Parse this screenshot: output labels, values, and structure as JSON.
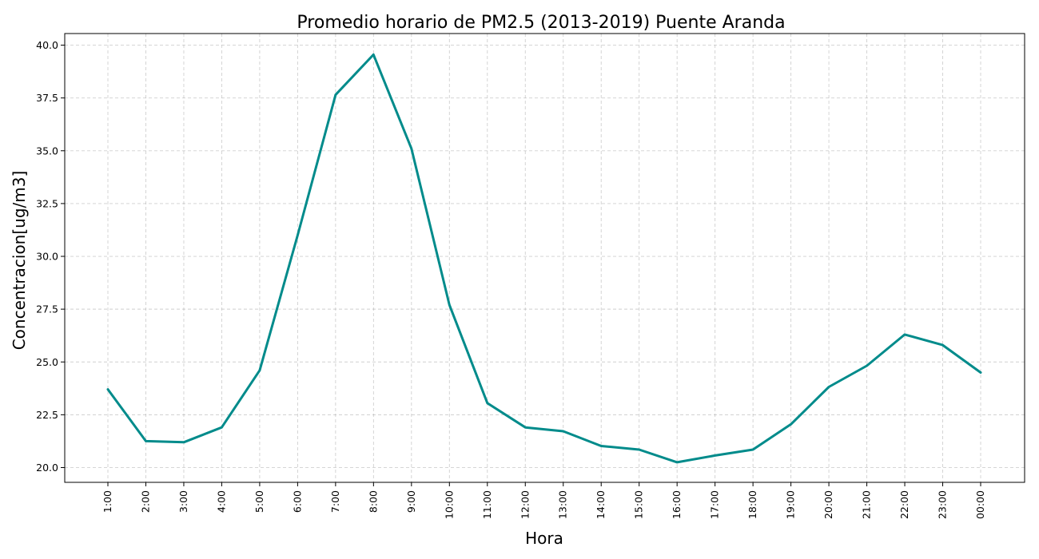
{
  "chart_data": {
    "type": "line",
    "title": "Promedio horario de PM2.5 (2013-2019) Puente Aranda",
    "xlabel": "Hora",
    "ylabel": "Concentracion[ug/m3]",
    "categories": [
      "1:00",
      "2:00",
      "3:00",
      "4:00",
      "5:00",
      "6:00",
      "7:00",
      "8:00",
      "9:00",
      "10:00",
      "11:00",
      "12:00",
      "13:00",
      "14:00",
      "15:00",
      "16:00",
      "17:00",
      "18:00",
      "19:00",
      "20:00",
      "21:00",
      "22:00",
      "23:00",
      "00:00"
    ],
    "series": [
      {
        "color": "#008b8b",
        "values": [
          23.7,
          21.25,
          21.2,
          21.9,
          24.6,
          31.0,
          37.65,
          39.55,
          35.1,
          27.7,
          23.05,
          21.9,
          21.72,
          21.02,
          20.85,
          20.25,
          20.57,
          20.85,
          22.05,
          23.82,
          24.82,
          26.3,
          25.8,
          24.5
        ]
      }
    ],
    "yticks": [
      "20.0",
      "22.5",
      "25.0",
      "27.5",
      "30.0",
      "32.5",
      "35.0",
      "37.5",
      "40.0"
    ],
    "ylim": [
      19.3,
      40.55
    ],
    "grid": true,
    "legend": "none",
    "line_color": "#008b8b"
  }
}
